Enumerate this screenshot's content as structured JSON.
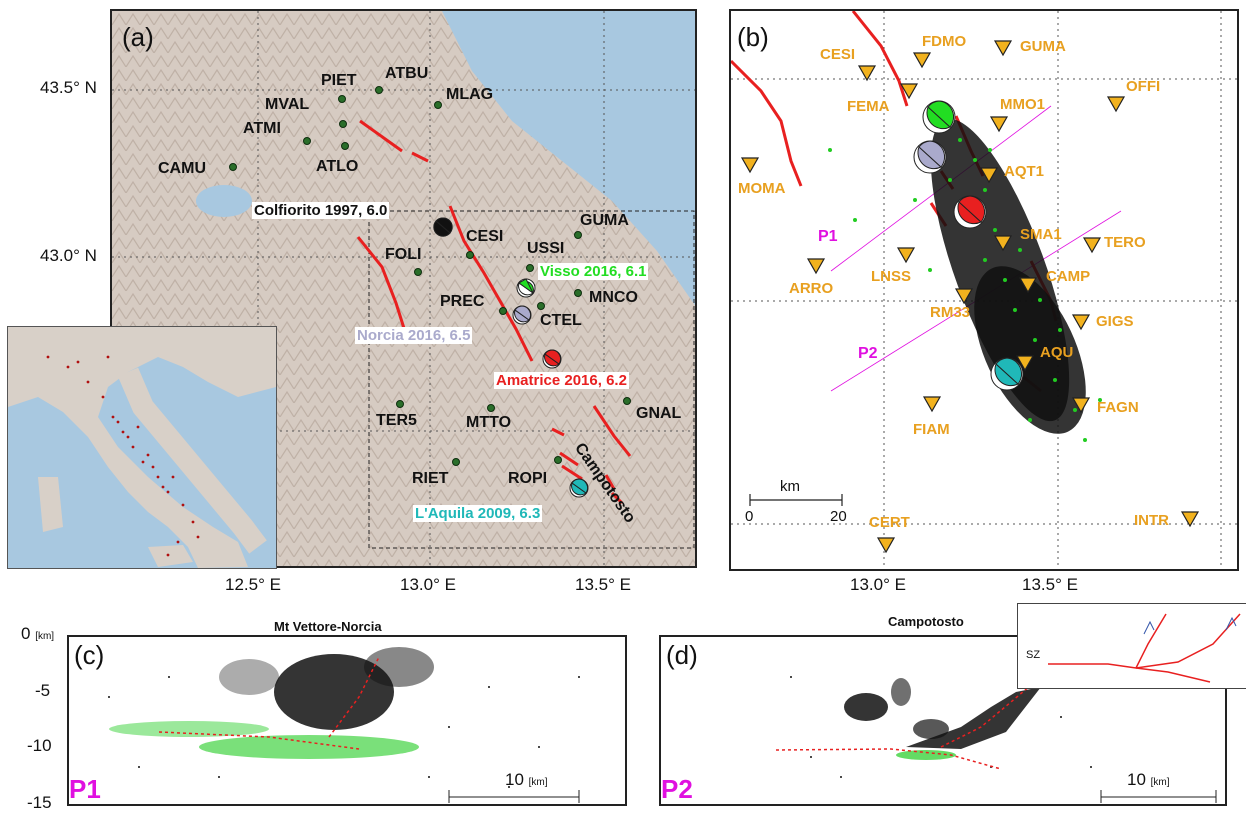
{
  "panels": {
    "a": {
      "label": "(a)",
      "lat_ticks": [
        "43.5° N",
        "43.0° N"
      ],
      "lon_ticks": [
        "12.5° E",
        "13.0° E",
        "13.5° E"
      ],
      "stations": [
        "PIET",
        "ATBU",
        "MVAL",
        "MLAG",
        "ATMI",
        "CAMU",
        "ATLO",
        "GUMA",
        "CESI",
        "USSI",
        "FOLI",
        "MNCO",
        "PREC",
        "CTEL",
        "GNAL",
        "TER5",
        "MTTO",
        "RIET",
        "ROPI"
      ],
      "events": [
        {
          "label": "Colfiorito 1997, 6.0",
          "color": "#111111"
        },
        {
          "label": "Visso 2016, 6.1",
          "color": "#22dd22"
        },
        {
          "label": "Norcia 2016, 6.5",
          "color": "#aaaacc"
        },
        {
          "label": "Amatrice 2016, 6.2",
          "color": "#e82020"
        },
        {
          "label": "L'Aquila 2009, 6.3",
          "color": "#20b8b8"
        }
      ],
      "fault_label": "Campotosto"
    },
    "b": {
      "label": "(b)",
      "stations": [
        "CESI",
        "FDMO",
        "GUMA",
        "OFFI",
        "FEMA",
        "MMO1",
        "MOMA",
        "AQT1",
        "SMA1",
        "TERO",
        "ARRO",
        "LNSS",
        "CAMP",
        "RM33",
        "GIGS",
        "AQU",
        "FAGN",
        "FIAM",
        "CERT",
        "INTR"
      ],
      "profiles": [
        "P1",
        "P2"
      ],
      "lon_ticks": [
        "13.0° E",
        "13.5° E"
      ],
      "scale_unit": "km",
      "scale_min": "0",
      "scale_max": "20"
    },
    "c": {
      "label": "(c)",
      "title": "Mt Vettore-Norcia",
      "profile": "P1",
      "depth_ticks": [
        "0",
        "-5",
        "-10",
        "-15"
      ],
      "depth_unit": "[km]",
      "scale_value": "10",
      "scale_unit": "[km]"
    },
    "d": {
      "label": "(d)",
      "title": "Campotosto",
      "profile": "P2",
      "scale_value": "10",
      "scale_unit": "[km]",
      "inset_label": "SZ"
    }
  },
  "colors": {
    "fault": "#e82020",
    "station_b": "#f2b21e",
    "profile": "#e010e0",
    "green_dots": "#22cc22",
    "sea": "#a8c8e0",
    "land": "#d9cec6"
  }
}
